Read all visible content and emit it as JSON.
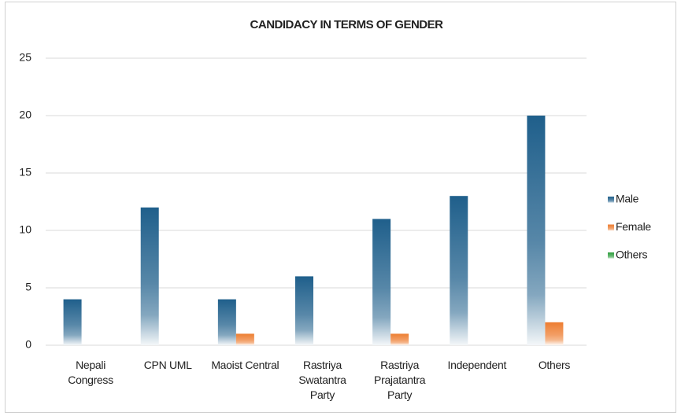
{
  "chart_data": {
    "type": "bar",
    "title": "CANDIDACY IN TERMS OF GENDER",
    "categories": [
      "Nepali Congress",
      "CPN UML",
      "Maoist Central",
      "Rastriya Swatantra Party",
      "Rastriya Prajatantra Party",
      "Independent",
      "Others"
    ],
    "series": [
      {
        "name": "Male",
        "color": "#1f5f8b",
        "values": [
          4,
          12,
          4,
          6,
          11,
          13,
          20
        ]
      },
      {
        "name": "Female",
        "color": "#ed7d31",
        "values": [
          0,
          0,
          1,
          0,
          1,
          0,
          2
        ]
      },
      {
        "name": "Others",
        "color": "#2e9e3e",
        "values": [
          0,
          0,
          0,
          0,
          0,
          0,
          0
        ]
      }
    ],
    "ylim": [
      0,
      25
    ],
    "yticks": [
      0,
      5,
      10,
      15,
      20,
      25
    ],
    "grid": true,
    "legend": "right"
  }
}
